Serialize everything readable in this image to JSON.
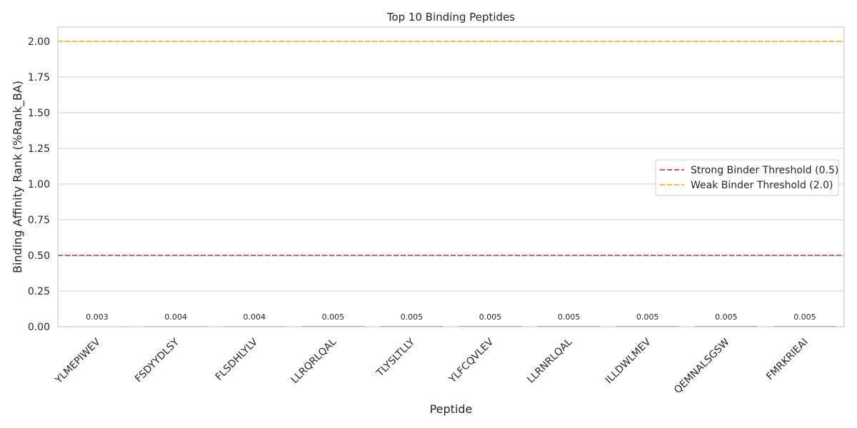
{
  "chart_data": {
    "type": "bar",
    "title": "Top 10 Binding Peptides",
    "xlabel": "Peptide",
    "ylabel": "Binding Affinity Rank (%Rank_BA)",
    "categories": [
      "YLMEPIWEV",
      "FSDYYDLSY",
      "FLSDHLYLV",
      "LLRQRLQAL",
      "TLYSLTLLY",
      "YLFCQVLEV",
      "LLRNRLQAL",
      "ILLDWLMEV",
      "QEMNALSGSW",
      "FMRKRIEAI"
    ],
    "values": [
      0.003,
      0.004,
      0.004,
      0.005,
      0.005,
      0.005,
      0.005,
      0.005,
      0.005,
      0.005
    ],
    "data_labels": [
      "0.003",
      "0.004",
      "0.004",
      "0.005",
      "0.005",
      "0.005",
      "0.005",
      "0.005",
      "0.005",
      "0.005"
    ],
    "ylim": [
      0,
      2.1
    ],
    "yticks": [
      "0.00",
      "0.25",
      "0.50",
      "0.75",
      "1.00",
      "1.25",
      "1.50",
      "1.75",
      "2.00"
    ],
    "ytick_values": [
      0,
      0.25,
      0.5,
      0.75,
      1.0,
      1.25,
      1.5,
      1.75,
      2.0
    ],
    "grid": "horizontal",
    "reference_lines": [
      {
        "name": "Strong Binder Threshold (0.5)",
        "y": 0.5,
        "color": "#d62728",
        "style": "dashed"
      },
      {
        "name": "Weak Binder Threshold (2.0)",
        "y": 2.0,
        "color": "#ffa500",
        "style": "dashed"
      }
    ],
    "legend_position": "center-right",
    "colors": {
      "grid": "#cccccc",
      "frame": "#cccccc",
      "bar": "#4c72b0"
    }
  }
}
